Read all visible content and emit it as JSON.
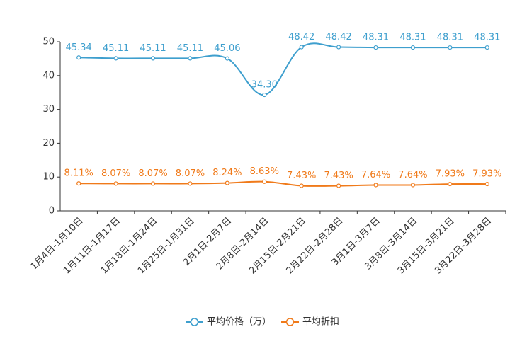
{
  "chart_data": {
    "type": "line",
    "categories": [
      "1月4日-1月10日",
      "1月11日-1月17日",
      "1月18日-1月24日",
      "1月25日-1月31日",
      "2月1日-2月7日",
      "2月8日-2月14日",
      "2月15日-2月21日",
      "2月22日-2月28日",
      "3月1日-3月7日",
      "3月8日-3月14日",
      "3月15日-3月21日",
      "3月22日-3月28日"
    ],
    "series": [
      {
        "name": "平均价格（万）",
        "color": "#3e9fce",
        "values": [
          45.34,
          45.11,
          45.11,
          45.11,
          45.06,
          34.3,
          48.42,
          48.42,
          48.31,
          48.31,
          48.31,
          48.31
        ],
        "value_labels": [
          "45.34",
          "45.11",
          "45.11",
          "45.11",
          "45.06",
          "34.30",
          "48.42",
          "48.42",
          "48.31",
          "48.31",
          "48.31",
          "48.31"
        ]
      },
      {
        "name": "平均折扣",
        "color": "#f07a1a",
        "values": [
          8.11,
          8.07,
          8.07,
          8.07,
          8.24,
          8.63,
          7.43,
          7.43,
          7.64,
          7.64,
          7.93,
          7.93
        ],
        "value_labels": [
          "8.11%",
          "8.07%",
          "8.07%",
          "8.07%",
          "8.24%",
          "8.63%",
          "7.43%",
          "7.43%",
          "7.64%",
          "7.64%",
          "7.93%",
          "7.93%"
        ]
      }
    ],
    "ylim": [
      0,
      50
    ],
    "yticks": [
      0,
      10,
      20,
      30,
      40,
      50
    ],
    "grid": false,
    "legend": "bottom",
    "smooth": true
  }
}
